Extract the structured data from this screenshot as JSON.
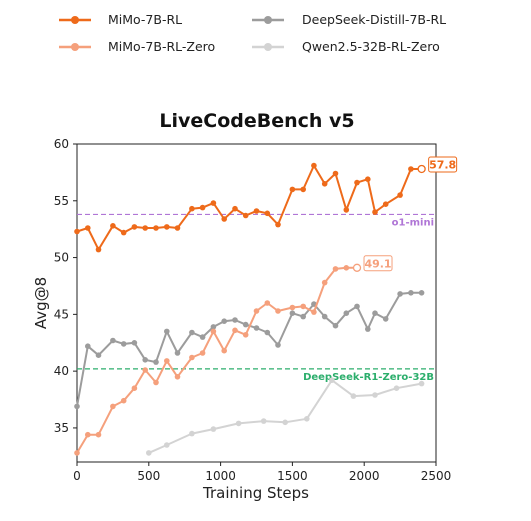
{
  "chart_data": {
    "type": "line",
    "title": "LiveCodeBench v5",
    "xlabel": "Training Steps",
    "ylabel": "Avg@8",
    "xlim": [
      0,
      2500
    ],
    "ylim": [
      32,
      60
    ],
    "xticks": [
      0,
      500,
      1000,
      1500,
      2000,
      2500
    ],
    "yticks": [
      35,
      40,
      45,
      50,
      55,
      60
    ],
    "legend_position": "top",
    "series": [
      {
        "name": "MiMo-7B-RL",
        "color": "#ee6a1a",
        "x": [
          0,
          75,
          150,
          250,
          325,
          400,
          475,
          550,
          625,
          700,
          800,
          875,
          950,
          1025,
          1100,
          1175,
          1250,
          1325,
          1400,
          1500,
          1575,
          1650,
          1725,
          1800,
          1875,
          1950,
          2025,
          2075,
          2150,
          2250,
          2325,
          2400
        ],
        "y": [
          52.3,
          52.6,
          50.7,
          52.8,
          52.2,
          52.7,
          52.6,
          52.6,
          52.7,
          52.6,
          54.3,
          54.4,
          54.8,
          53.4,
          54.3,
          53.7,
          54.1,
          53.9,
          52.9,
          56.0,
          56.0,
          58.1,
          56.5,
          57.4,
          54.2,
          56.6,
          56.9,
          54.0,
          54.7,
          55.5,
          57.8,
          57.8
        ],
        "end_label": "57.8"
      },
      {
        "name": "MiMo-7B-RL-Zero",
        "color": "#f5a07c",
        "x": [
          0,
          75,
          150,
          250,
          325,
          400,
          475,
          550,
          625,
          700,
          800,
          875,
          950,
          1025,
          1100,
          1175,
          1250,
          1325,
          1400,
          1500,
          1575,
          1650,
          1725,
          1800,
          1875,
          1950
        ],
        "y": [
          32.8,
          34.4,
          34.4,
          36.9,
          37.4,
          38.5,
          40.1,
          39.0,
          40.9,
          39.5,
          41.2,
          41.6,
          43.5,
          41.8,
          43.6,
          43.2,
          45.3,
          46.0,
          45.3,
          45.6,
          45.7,
          45.2,
          47.8,
          49.0,
          49.1,
          49.1
        ],
        "end_label": "49.1"
      },
      {
        "name": "DeepSeek-Distill-7B-RL",
        "color": "#9c9c9c",
        "x": [
          0,
          75,
          150,
          250,
          325,
          400,
          475,
          550,
          625,
          700,
          800,
          875,
          950,
          1025,
          1100,
          1175,
          1250,
          1325,
          1400,
          1500,
          1575,
          1650,
          1725,
          1800,
          1875,
          1950,
          2025,
          2075,
          2150,
          2250,
          2325,
          2400
        ],
        "y": [
          36.9,
          42.2,
          41.4,
          42.7,
          42.4,
          42.5,
          41.0,
          40.8,
          43.5,
          41.6,
          43.4,
          43.0,
          43.9,
          44.4,
          44.5,
          44.1,
          43.8,
          43.4,
          42.3,
          45.1,
          44.8,
          45.9,
          44.8,
          44.0,
          45.1,
          45.7,
          43.7,
          45.1,
          44.6,
          46.8,
          46.9,
          46.9
        ]
      },
      {
        "name": "Qwen2.5-32B-RL-Zero",
        "color": "#d3d3d3",
        "x": [
          500,
          625,
          800,
          950,
          1125,
          1300,
          1450,
          1600,
          1775,
          1925,
          2075,
          2225,
          2400
        ],
        "y": [
          32.8,
          33.5,
          34.5,
          34.9,
          35.4,
          35.6,
          35.5,
          35.8,
          39.2,
          37.8,
          37.9,
          38.5,
          38.9
        ]
      }
    ],
    "reference_lines": [
      {
        "label": "o1-mini",
        "y": 53.8,
        "color": "#b076d6"
      },
      {
        "label": "DeepSeek-R1-Zero-32B",
        "y": 40.2,
        "color": "#2cae6c"
      }
    ]
  }
}
